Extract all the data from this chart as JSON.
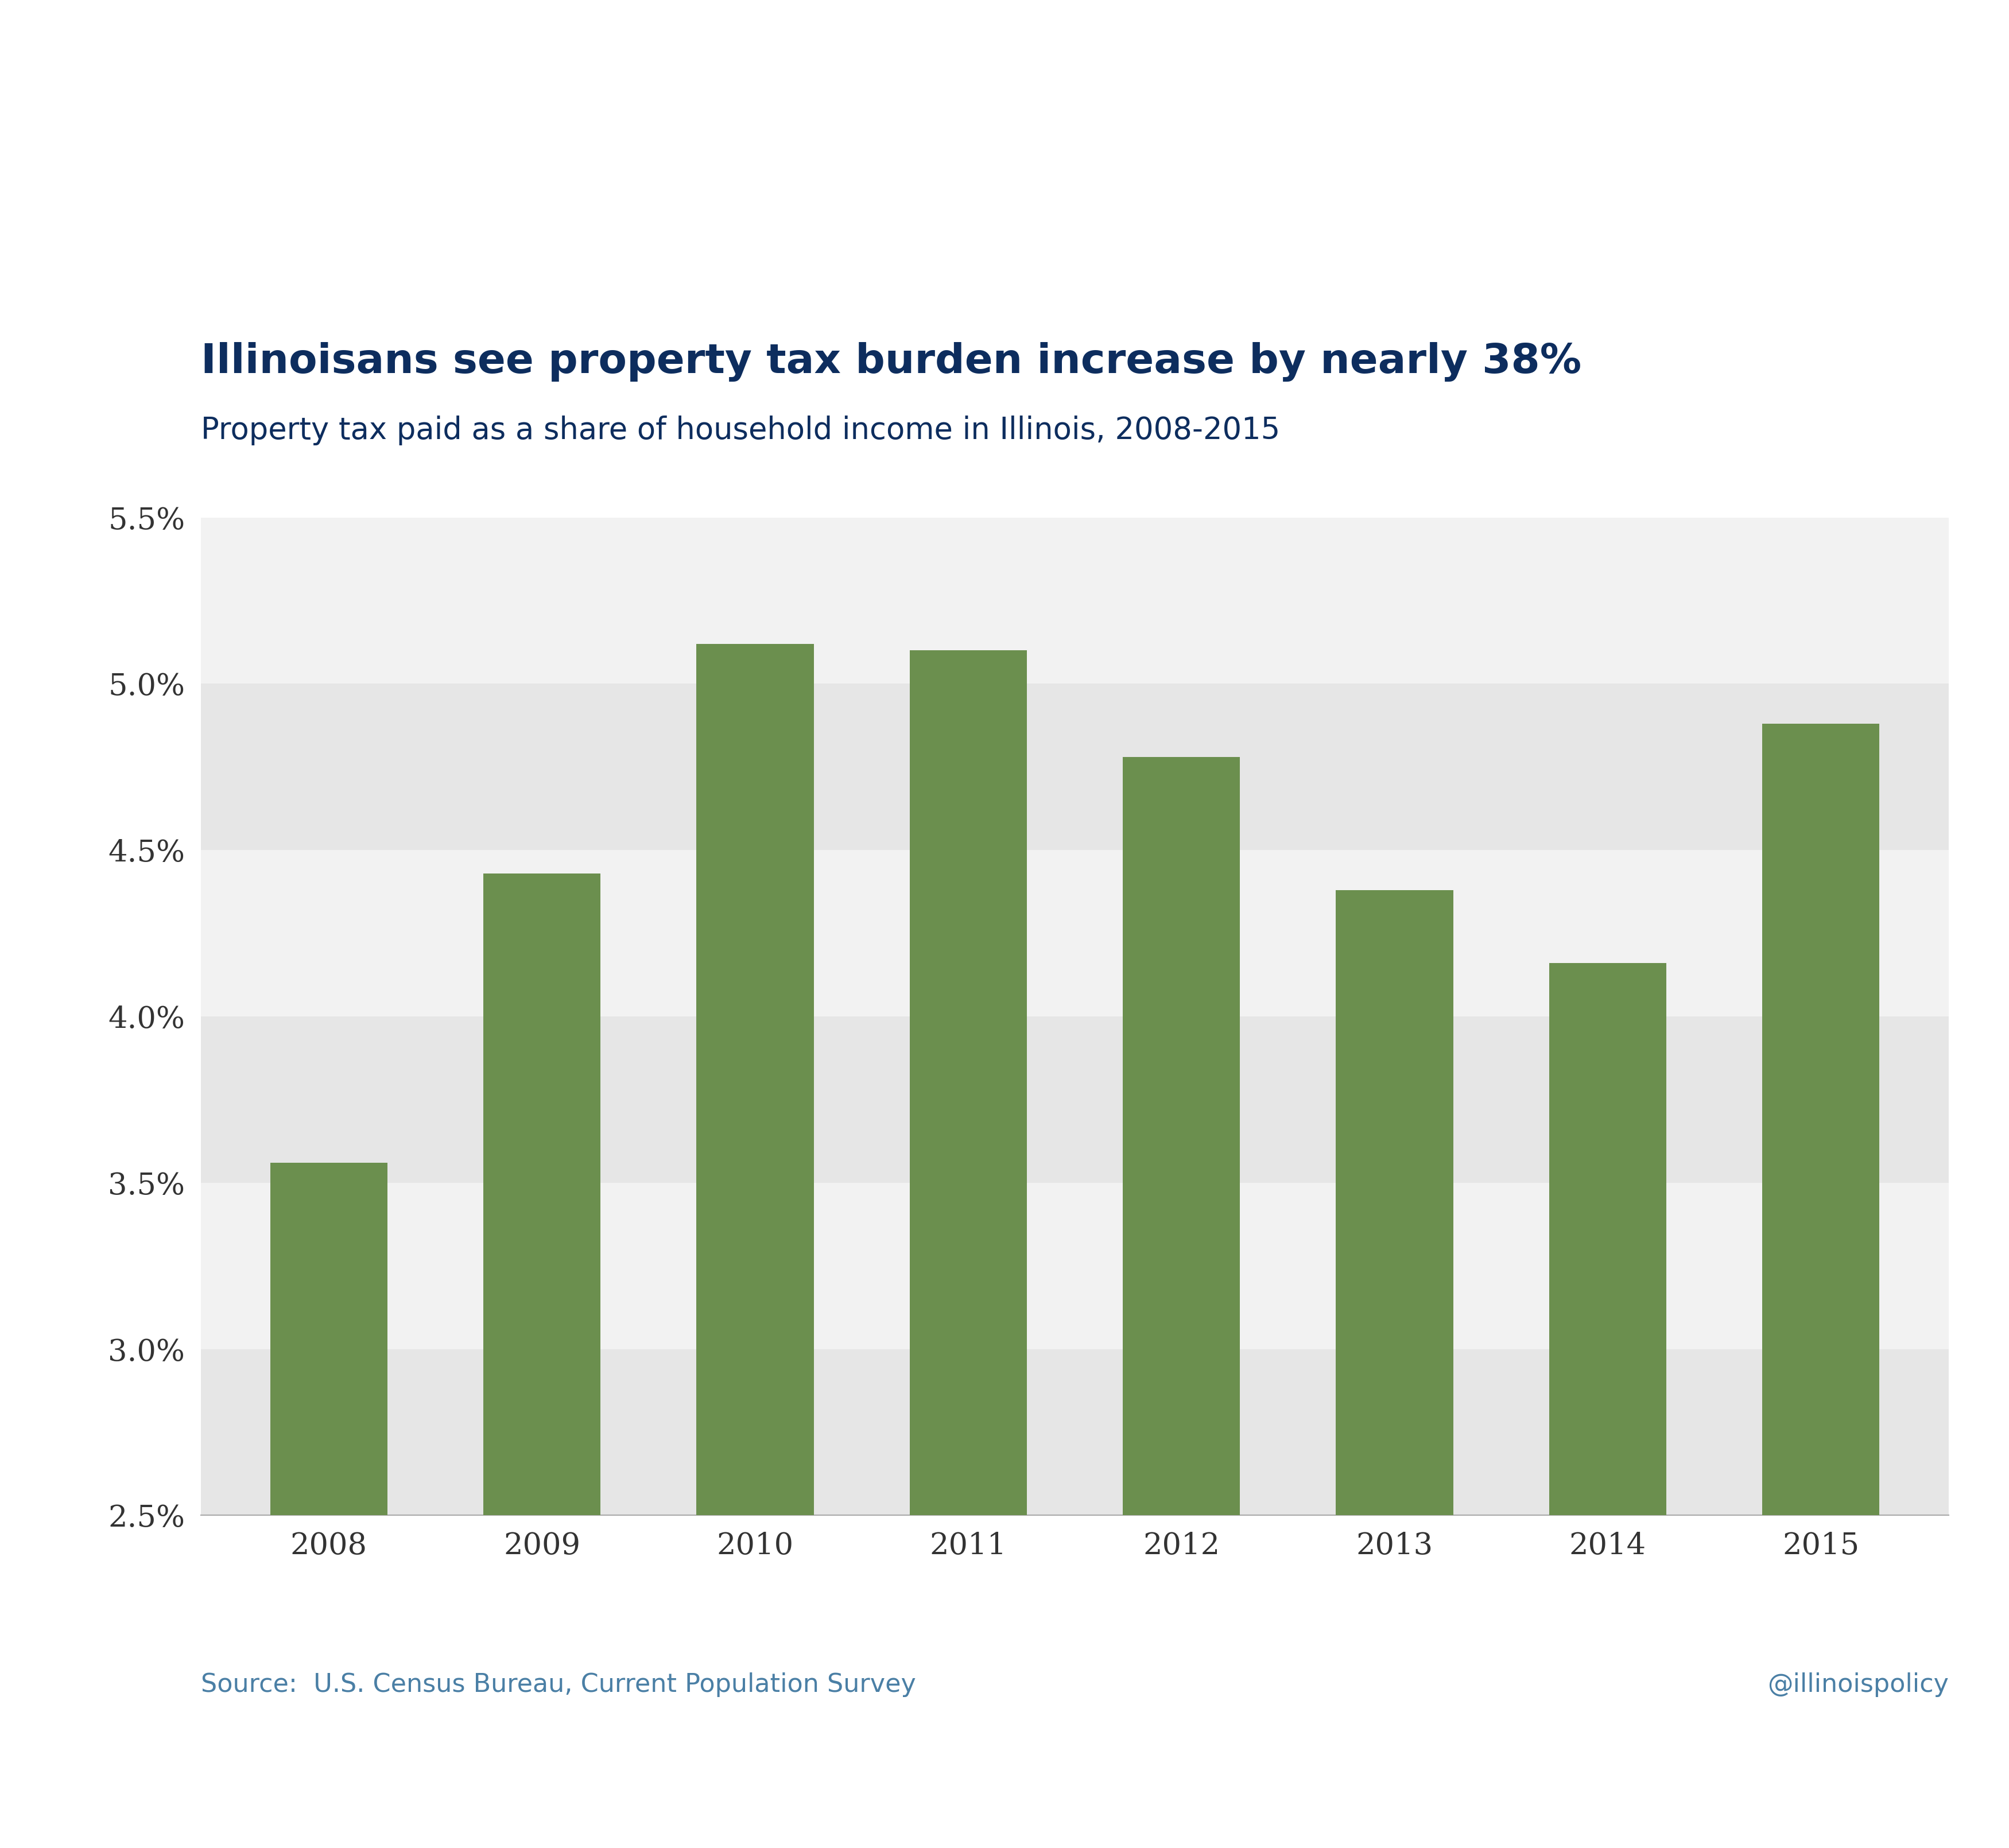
{
  "title": "Illinoisans see property tax burden increase by nearly 38%",
  "subtitle": "Property tax paid as a share of household income in Illinois, 2008-2015",
  "source_text": "Source:  U.S. Census Bureau, Current Population Survey",
  "watermark": "@illinoispolicy",
  "years": [
    2008,
    2009,
    2010,
    2011,
    2012,
    2013,
    2014,
    2015
  ],
  "values": [
    0.0356,
    0.0443,
    0.0512,
    0.051,
    0.0478,
    0.0438,
    0.0416,
    0.0488
  ],
  "bar_color": "#6b8f4e",
  "title_color": "#0d2d5e",
  "subtitle_color": "#0d2d5e",
  "axis_color": "#333333",
  "source_color": "#4a7fa5",
  "watermark_color": "#4a7fa5",
  "background_color": "#ffffff",
  "band_light": "#f2f2f2",
  "band_dark": "#e6e6e6",
  "ylim": [
    0.025,
    0.055
  ],
  "yticks": [
    0.025,
    0.03,
    0.035,
    0.04,
    0.045,
    0.05,
    0.055
  ],
  "ytick_labels": [
    "2.5%",
    "3.0%",
    "3.5%",
    "4.0%",
    "4.5%",
    "5.0%",
    "5.5%"
  ],
  "title_fontsize": 52,
  "subtitle_fontsize": 38,
  "tick_fontsize": 38,
  "source_fontsize": 32,
  "bar_width": 0.55
}
